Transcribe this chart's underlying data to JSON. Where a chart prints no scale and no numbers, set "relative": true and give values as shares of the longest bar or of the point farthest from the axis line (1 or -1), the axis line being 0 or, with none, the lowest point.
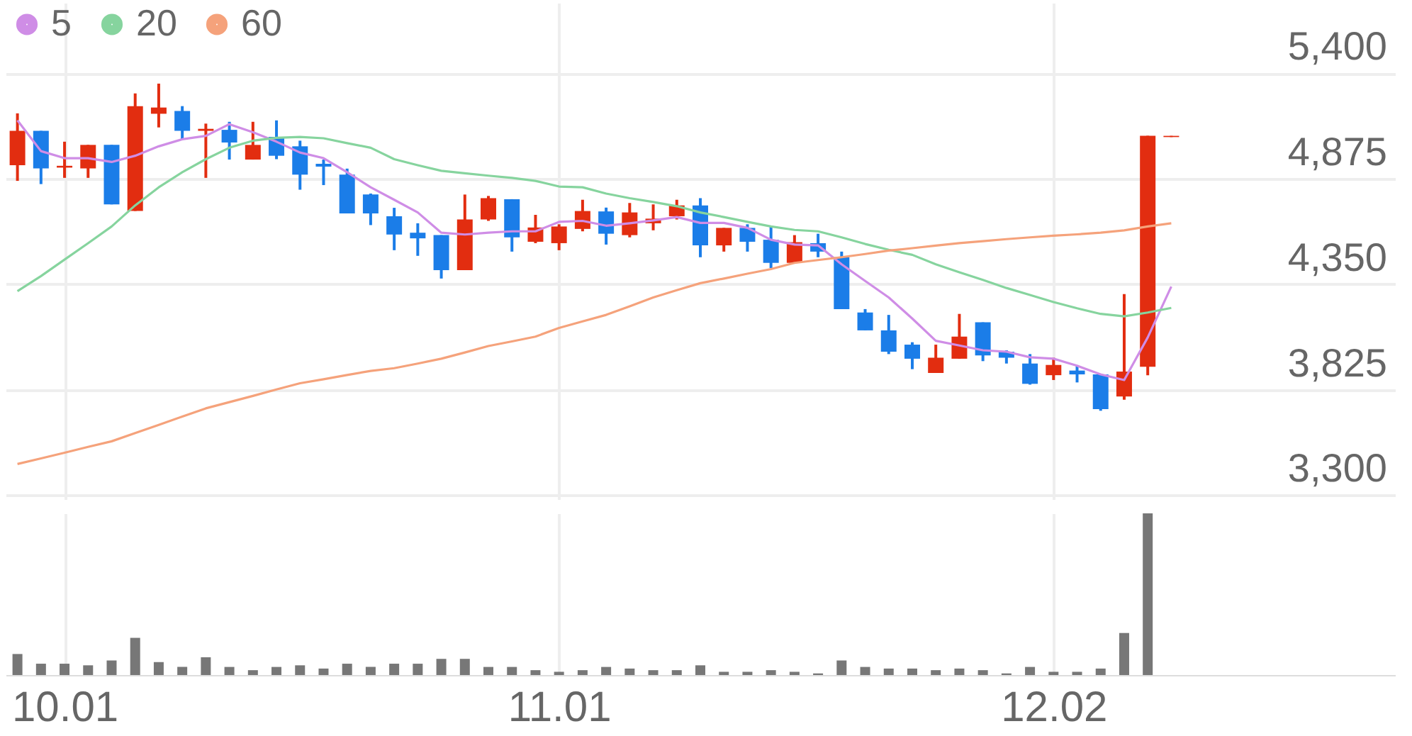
{
  "chart_data": [
    {
      "type": "candlestick",
      "categories": [
        null,
        null,
        "10.01",
        null,
        null,
        null,
        null,
        null,
        null,
        null,
        null,
        null,
        null,
        null,
        null,
        null,
        null,
        null,
        null,
        null,
        null,
        null,
        null,
        "11.01",
        null,
        null,
        null,
        null,
        null,
        null,
        null,
        null,
        null,
        null,
        null,
        null,
        null,
        null,
        null,
        null,
        null,
        null,
        null,
        null,
        "12.02",
        null,
        null,
        null,
        null,
        null
      ],
      "ohlc": [
        [
          4942,
          5200,
          4864,
          5113
        ],
        [
          5113,
          5113,
          4848,
          4926
        ],
        [
          4930,
          5059,
          4879,
          4939
        ],
        [
          4926,
          5043,
          4879,
          5043
        ],
        [
          5043,
          5043,
          4747,
          4747
        ],
        [
          4714,
          5299,
          4714,
          5236
        ],
        [
          5198,
          5348,
          5130,
          5229
        ],
        [
          5212,
          5236,
          5071,
          5113
        ],
        [
          5113,
          5149,
          4879,
          5123
        ],
        [
          5118,
          5158,
          4970,
          5055
        ],
        [
          4970,
          5158,
          4970,
          5043
        ],
        [
          5083,
          5165,
          4972,
          4989
        ],
        [
          5036,
          5064,
          4820,
          4895
        ],
        [
          4949,
          4970,
          4843,
          4935
        ],
        [
          4895,
          4925,
          4702,
          4702
        ],
        [
          4796,
          4801,
          4644,
          4702
        ],
        [
          4688,
          4730,
          4519,
          4597
        ],
        [
          4606,
          4653,
          4491,
          4578
        ],
        [
          4594,
          4594,
          4378,
          4420
        ],
        [
          4420,
          4796,
          4420,
          4672
        ],
        [
          4672,
          4789,
          4665,
          4778
        ],
        [
          4773,
          4773,
          4512,
          4583
        ],
        [
          4561,
          4695,
          4554,
          4632
        ],
        [
          4554,
          4648,
          4519,
          4637
        ],
        [
          4625,
          4770,
          4613,
          4714
        ],
        [
          4712,
          4731,
          4547,
          4601
        ],
        [
          4594,
          4754,
          4583,
          4707
        ],
        [
          4653,
          4747,
          4618,
          4676
        ],
        [
          4688,
          4770,
          4672,
          4742
        ],
        [
          4742,
          4778,
          4484,
          4543
        ],
        [
          4543,
          4630,
          4512,
          4630
        ],
        [
          4630,
          4648,
          4512,
          4561
        ],
        [
          4571,
          4637,
          4430,
          4456
        ],
        [
          4456,
          4594,
          4456,
          4559
        ],
        [
          4554,
          4601,
          4484,
          4512
        ],
        [
          4484,
          4512,
          4226,
          4226
        ],
        [
          4209,
          4226,
          4120,
          4120
        ],
        [
          4120,
          4197,
          4002,
          4014
        ],
        [
          4049,
          4061,
          3927,
          3979
        ],
        [
          3908,
          4049,
          3908,
          3984
        ],
        [
          3979,
          4202,
          3979,
          4089
        ],
        [
          4160,
          4160,
          3967,
          3995
        ],
        [
          4014,
          4021,
          3955,
          3984
        ],
        [
          3955,
          4002,
          3850,
          3854
        ],
        [
          3897,
          3984,
          3873,
          3948
        ],
        [
          3920,
          3944,
          3861,
          3901
        ],
        [
          3901,
          3901,
          3720,
          3728
        ],
        [
          3791,
          4301,
          3775,
          3915
        ],
        [
          3939,
          5088,
          3897,
          5088
        ],
        [
          5082,
          5088,
          5082,
          5088
        ]
      ],
      "colors": [
        "#e22d10",
        "#1b7de8",
        "#e22d10",
        "#e22d10",
        "#1b7de8",
        "#e22d10",
        "#e22d10",
        "#1b7de8",
        "#e22d10",
        "#1b7de8",
        "#e22d10",
        "#1b7de8",
        "#1b7de8",
        "#1b7de8",
        "#1b7de8",
        "#1b7de8",
        "#1b7de8",
        "#1b7de8",
        "#1b7de8",
        "#e22d10",
        "#e22d10",
        "#1b7de8",
        "#e22d10",
        "#e22d10",
        "#e22d10",
        "#1b7de8",
        "#e22d10",
        "#e22d10",
        "#e22d10",
        "#1b7de8",
        "#e22d10",
        "#1b7de8",
        "#1b7de8",
        "#e22d10",
        "#1b7de8",
        "#1b7de8",
        "#1b7de8",
        "#1b7de8",
        "#1b7de8",
        "#e22d10",
        "#e22d10",
        "#1b7de8",
        "#1b7de8",
        "#1b7de8",
        "#e22d10",
        "#1b7de8",
        "#1b7de8",
        "#e22d10",
        "#e22d10",
        "#e22d10"
      ],
      "series": [
        {
          "name": "5",
          "type": "line",
          "color": "#cf8de6",
          "values": [
            5165,
            5012,
            4977,
            4977,
            4958,
            4989,
            5036,
            5071,
            5088,
            5146,
            5106,
            5059,
            5005,
            4977,
            4907,
            4832,
            4770,
            4707,
            4606,
            4597,
            4606,
            4613,
            4613,
            4660,
            4665,
            4641,
            4653,
            4667,
            4684,
            4655,
            4655,
            4630,
            4571,
            4547,
            4543,
            4449,
            4366,
            4284,
            4179,
            4068,
            4045,
            4021,
            4014,
            3986,
            3979,
            3944,
            3901,
            3873,
            4085,
            4338
          ]
        },
        {
          "name": "20",
          "type": "line",
          "color": "#86d49e",
          "values": [
            4315,
            4390,
            4472,
            4554,
            4637,
            4742,
            4832,
            4907,
            4972,
            5029,
            5064,
            5078,
            5083,
            5076,
            5052,
            5029,
            4972,
            4942,
            4914,
            4902,
            4890,
            4879,
            4864,
            4836,
            4832,
            4801,
            4778,
            4759,
            4738,
            4707,
            4684,
            4660,
            4637,
            4620,
            4613,
            4583,
            4550,
            4521,
            4496,
            4449,
            4409,
            4371,
            4331,
            4296,
            4261,
            4230,
            4202,
            4190,
            4209,
            4232
          ]
        },
        {
          "name": "60",
          "type": "line",
          "color": "#f5a27b",
          "values": [
            3455,
            3483,
            3511,
            3540,
            3568,
            3609,
            3650,
            3691,
            3732,
            3763,
            3794,
            3826,
            3857,
            3877,
            3898,
            3918,
            3932,
            3955,
            3979,
            4010,
            4042,
            4065,
            4089,
            4132,
            4165,
            4197,
            4240,
            4284,
            4320,
            4355,
            4378,
            4402,
            4425,
            4456,
            4470,
            4484,
            4500,
            4517,
            4529,
            4542,
            4554,
            4564,
            4574,
            4583,
            4591,
            4598,
            4606,
            4618,
            4637,
            4653
          ]
        }
      ],
      "ylim": [
        3280,
        5750
      ],
      "yticks": [
        {
          "value": 3300,
          "label": "3,300"
        },
        {
          "value": 3825,
          "label": "3,825"
        },
        {
          "value": 4350,
          "label": "4,350"
        },
        {
          "value": 4875,
          "label": "4,875"
        },
        {
          "value": 5400,
          "label": "5,400"
        }
      ],
      "grid": true,
      "legend": "top left",
      "tick_labels": "y"
    },
    {
      "type": "bar",
      "relative": true,
      "color": "#777777",
      "categories": [
        null,
        null,
        "10.01",
        null,
        null,
        null,
        null,
        null,
        null,
        null,
        null,
        null,
        null,
        null,
        null,
        null,
        null,
        null,
        null,
        null,
        null,
        null,
        null,
        "11.01",
        null,
        null,
        null,
        null,
        null,
        null,
        null,
        null,
        null,
        null,
        null,
        null,
        null,
        null,
        null,
        null,
        null,
        null,
        null,
        null,
        "12.02",
        null,
        null,
        null,
        null,
        null
      ],
      "values": [
        0.13,
        0.07,
        0.07,
        0.06,
        0.09,
        0.23,
        0.08,
        0.05,
        0.11,
        0.05,
        0.03,
        0.05,
        0.06,
        0.04,
        0.07,
        0.05,
        0.07,
        0.07,
        0.1,
        0.1,
        0.05,
        0.05,
        0.03,
        0.02,
        0.03,
        0.05,
        0.04,
        0.03,
        0.03,
        0.06,
        0.02,
        0.02,
        0.03,
        0.02,
        0.01,
        0.09,
        0.05,
        0.04,
        0.04,
        0.03,
        0.04,
        0.03,
        0.01,
        0.05,
        0.02,
        0.02,
        0.04,
        0.26,
        1,
        null
      ],
      "grid": "x",
      "tick_labels": "x"
    }
  ]
}
